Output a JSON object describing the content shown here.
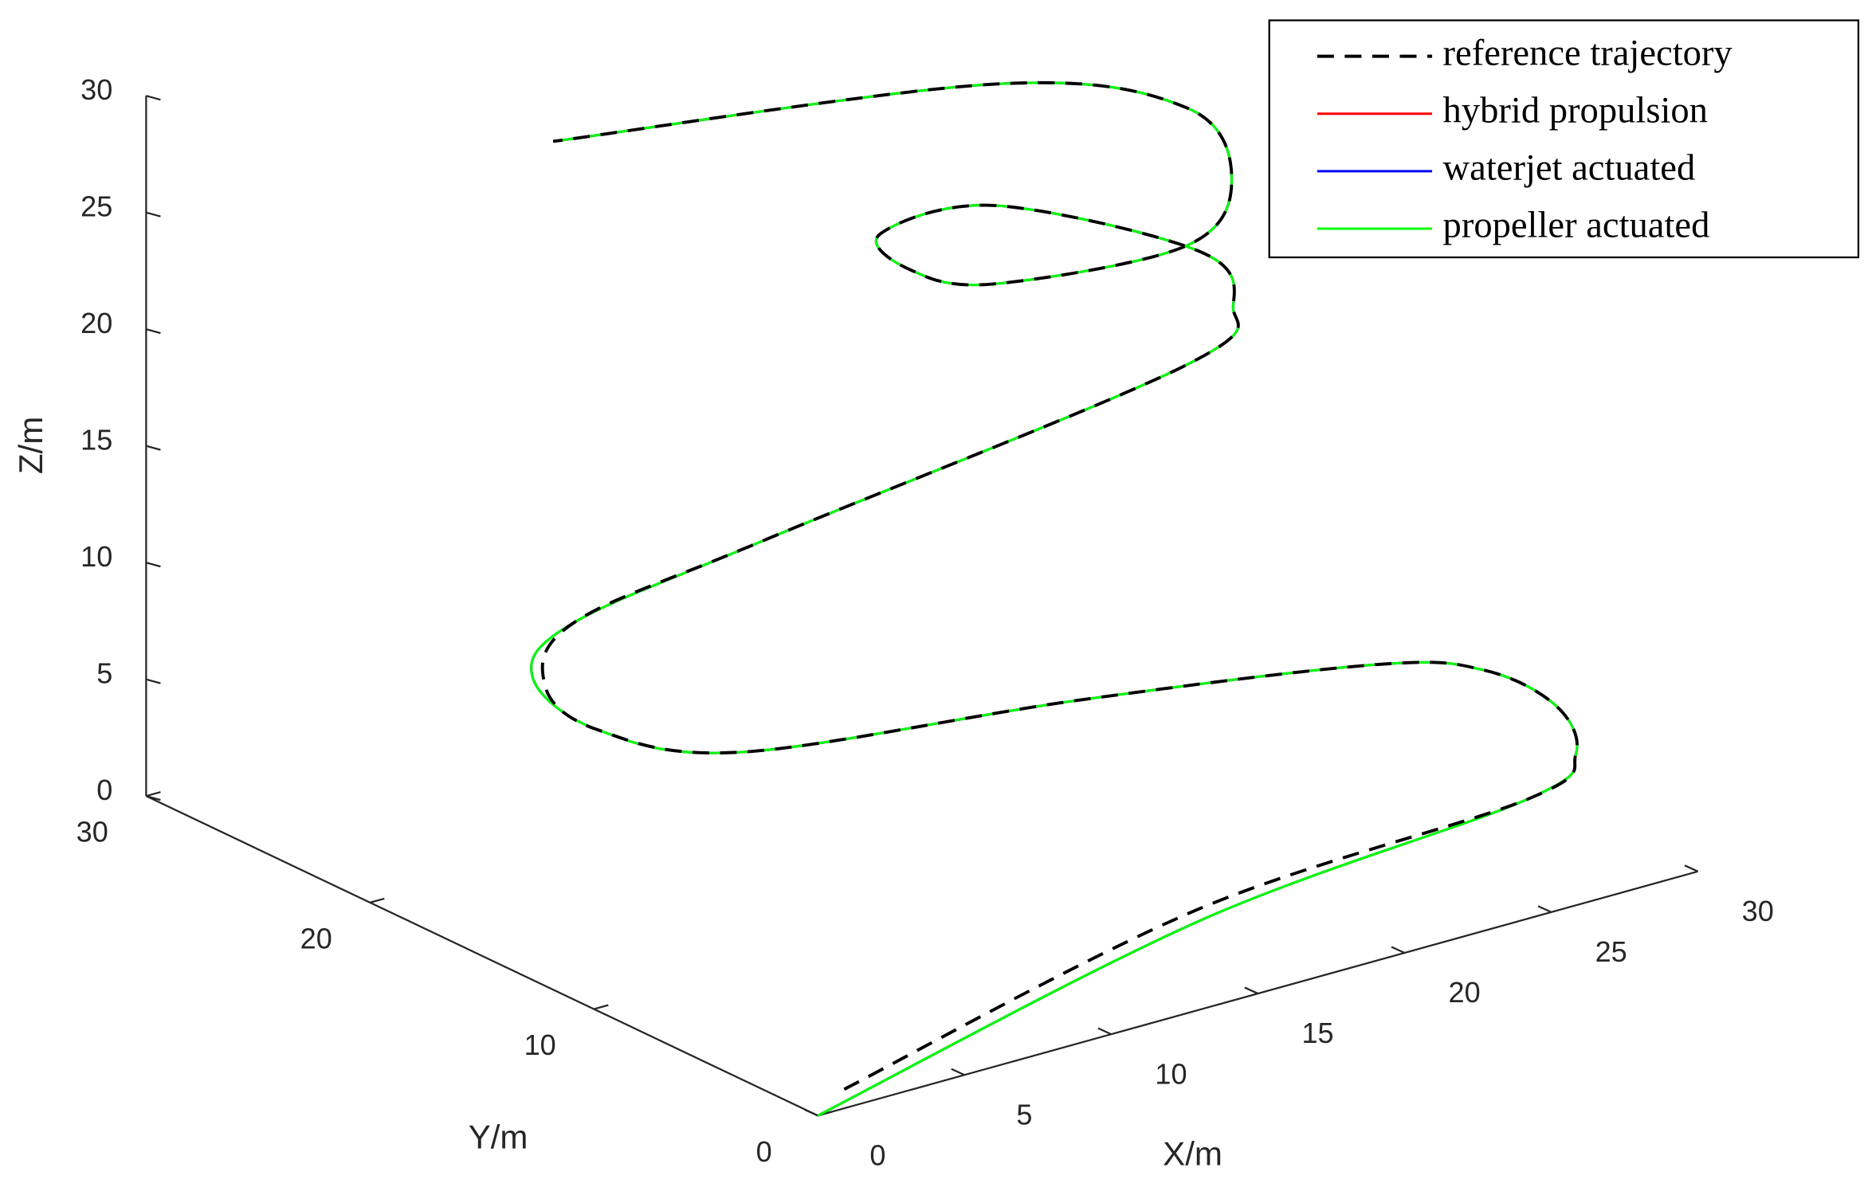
{
  "chart_data": {
    "type": "line3d",
    "xlabel": "X/m",
    "ylabel": "Y/m",
    "zlabel": "Z/m",
    "xlim": [
      0,
      30
    ],
    "ylim": [
      0,
      30
    ],
    "zlim": [
      0,
      30
    ],
    "xticks": [
      0,
      5,
      10,
      15,
      20,
      25,
      30
    ],
    "yticks": [
      0,
      10,
      20,
      30
    ],
    "zticks": [
      0,
      5,
      10,
      15,
      20,
      25,
      30
    ],
    "legend": "top-right",
    "series": [
      {
        "name": "hybrid propulsion",
        "color": "#ff0000",
        "dash": false,
        "x": [
          0,
          15.9,
          27.45,
          29.5,
          29.15,
          28.7,
          26.1,
          17.5,
          7.45,
          4.8,
          5.3,
          7.58,
          13.4,
          25.0,
          26.6,
          26.2,
          22.8,
          18.0,
          16.5,
          17.1,
          21.4,
          23.8,
          24.5,
          20.4,
          6.7
        ],
        "y": [
          0,
          3.87,
          4.31,
          4.8,
          5.2,
          7.82,
          9.25,
          11.36,
          13.1,
          16.1,
          19.7,
          20.8,
          19.8,
          16.3,
          16.3,
          17.3,
          22.0,
          20.8,
          17.5,
          14.6,
          11.6,
          12.7,
          15.65,
          18.8,
          20.6
        ],
        "z": [
          0,
          1,
          2,
          3,
          5,
          5.5,
          6,
          6.5,
          7,
          7.5,
          8,
          9,
          11,
          16,
          18,
          20,
          21,
          22,
          22.5,
          23,
          24.5,
          26,
          27.5,
          28.5,
          30
        ]
      },
      {
        "name": "waterjet actuated",
        "color": "#0000ff",
        "dash": false,
        "x": [
          0,
          15.9,
          27.45,
          29.5,
          29.15,
          28.7,
          26.1,
          17.5,
          7.45,
          4.8,
          5.3,
          7.58,
          13.4,
          25.0,
          26.6,
          26.2,
          22.8,
          18.0,
          16.5,
          17.1,
          21.4,
          23.8,
          24.5,
          20.4,
          6.7
        ],
        "y": [
          0,
          3.87,
          4.31,
          4.8,
          5.2,
          7.82,
          9.25,
          11.36,
          13.1,
          16.1,
          19.7,
          20.8,
          19.8,
          16.3,
          16.3,
          17.3,
          22.0,
          20.8,
          17.5,
          14.6,
          11.6,
          12.7,
          15.65,
          18.8,
          20.6
        ],
        "z": [
          0,
          1,
          2,
          3,
          5,
          5.5,
          6,
          6.5,
          7,
          7.5,
          8,
          9,
          11,
          16,
          18,
          20,
          21,
          22,
          22.5,
          23,
          24.5,
          26,
          27.5,
          28.5,
          30
        ]
      },
      {
        "name": "propeller actuated",
        "color": "#00ff00",
        "dash": false,
        "x": [
          0,
          15.9,
          27.45,
          29.5,
          29.15,
          28.7,
          26.1,
          17.5,
          7.45,
          4.8,
          5.3,
          7.58,
          13.4,
          25.0,
          26.6,
          26.2,
          22.8,
          18.0,
          16.5,
          17.1,
          21.4,
          23.8,
          24.5,
          20.4,
          6.7
        ],
        "y": [
          0,
          3.87,
          4.31,
          4.8,
          5.2,
          7.82,
          9.25,
          11.36,
          13.1,
          16.1,
          19.7,
          20.8,
          19.8,
          16.3,
          16.3,
          17.3,
          22.0,
          20.8,
          17.5,
          14.6,
          11.6,
          12.7,
          15.65,
          18.8,
          20.6
        ],
        "z": [
          0,
          1,
          2,
          3,
          5,
          5.5,
          6,
          6.5,
          7,
          7.5,
          8,
          9,
          11,
          16,
          18,
          20,
          21,
          22,
          22.5,
          23,
          24.5,
          26,
          27.5,
          28.5,
          30
        ]
      },
      {
        "name": "reference trajectory",
        "color": "#000000",
        "dash": true,
        "x": [
          1.76,
          16.4,
          27.45,
          29.5,
          29.15,
          28.7,
          26.1,
          17.5,
          7.45,
          4.8,
          5.17,
          7.58,
          13.4,
          25.0,
          26.6,
          26.2,
          22.8,
          18.0,
          16.5,
          17.1,
          21.4,
          23.8,
          24.5,
          20.4,
          6.7
        ],
        "y": [
          1.13,
          4.58,
          4.31,
          4.8,
          5.2,
          7.82,
          9.25,
          11.36,
          13.1,
          16.1,
          18.97,
          20.8,
          19.8,
          16.3,
          16.3,
          17.3,
          22.0,
          20.8,
          17.5,
          14.6,
          11.6,
          12.7,
          15.65,
          18.8,
          20.6
        ],
        "z": [
          0,
          1,
          2,
          3,
          5,
          5.5,
          6,
          6.5,
          7,
          7.5,
          8,
          9,
          11,
          16,
          18,
          20,
          21,
          22,
          22.5,
          23,
          24.5,
          26,
          27.5,
          28.5,
          30
        ]
      }
    ]
  }
}
